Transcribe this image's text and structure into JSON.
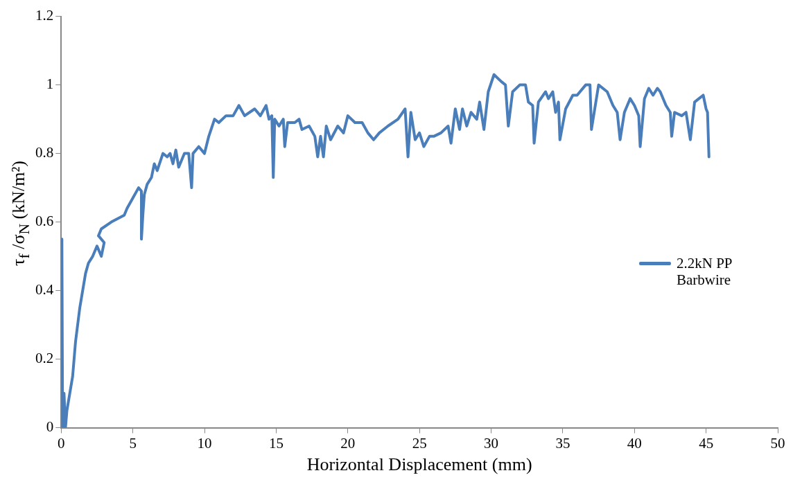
{
  "chart_data": {
    "type": "line",
    "xlabel": "Horizontal Displacement (mm)",
    "ylabel": "τ$_{f}$ /σ$_{N}$ (kN/m²)",
    "xlim": [
      0,
      50
    ],
    "xticks": [
      0,
      5,
      10,
      15,
      20,
      25,
      30,
      35,
      40,
      45,
      50
    ],
    "ylim": [
      0,
      1.2
    ],
    "yticks": [
      0,
      0.2,
      0.4,
      0.6,
      0.8,
      1,
      1.2
    ],
    "grid": false,
    "legend": "right",
    "marker": "none",
    "line_style": "solid",
    "series": [
      {
        "name": "2.2kN PP Barbwire",
        "color": "#4a7ebb",
        "x": [
          0.05,
          0.1,
          0.2,
          0.3,
          0.4,
          0.8,
          1.0,
          1.3,
          1.7,
          1.9,
          2.2,
          2.5,
          2.8,
          3.0,
          2.6,
          2.8,
          3.5,
          4.4,
          4.6,
          5.0,
          5.4,
          5.6,
          5.6,
          5.7,
          5.8,
          6.0,
          6.3,
          6.5,
          6.7,
          7.1,
          7.4,
          7.6,
          7.8,
          8.0,
          8.2,
          8.6,
          8.9,
          9.1,
          9.2,
          9.6,
          10,
          10.3,
          10.7,
          11.0,
          11.5,
          12.0,
          12.4,
          12.8,
          13.5,
          13.9,
          14.3,
          14.5,
          14.7,
          14.8,
          14.9,
          15.2,
          15.5,
          15.6,
          15.8,
          16.3,
          16.6,
          16.8,
          17.3,
          17.7,
          17.9,
          18.1,
          18.3,
          18.5,
          18.8,
          19.3,
          19.7,
          20.0,
          20.5,
          21.0,
          21.4,
          21.8,
          22.2,
          22.8,
          23.5,
          24.0,
          24.2,
          24.4,
          24.7,
          25.0,
          25.3,
          25.7,
          26.0,
          26.5,
          27.0,
          27.2,
          27.5,
          27.8,
          28.0,
          28.3,
          28.6,
          29.0,
          29.2,
          29.5,
          29.8,
          30.2,
          30.7,
          31.0,
          31.2,
          31.5,
          32.0,
          32.4,
          32.6,
          32.9,
          33.0,
          33.3,
          33.8,
          34.0,
          34.3,
          34.5,
          34.7,
          34.8,
          35.2,
          35.7,
          36.0,
          36.6,
          36.9,
          37.0,
          37.5,
          38.1,
          38.5,
          38.8,
          39.0,
          39.3,
          39.7,
          40.0,
          40.3,
          40.4,
          40.7,
          41.0,
          41.3,
          41.6,
          41.8,
          42.2,
          42.5,
          42.6,
          42.8,
          43.3,
          43.6,
          43.9,
          44.2,
          44.5,
          44.8,
          45.0,
          45.1,
          45.2
        ],
        "values": [
          0.55,
          0,
          0.1,
          0,
          0.05,
          0.15,
          0.25,
          0.35,
          0.45,
          0.48,
          0.5,
          0.53,
          0.5,
          0.54,
          0.56,
          0.58,
          0.6,
          0.62,
          0.64,
          0.67,
          0.7,
          0.69,
          0.55,
          0.62,
          0.68,
          0.71,
          0.73,
          0.77,
          0.75,
          0.8,
          0.79,
          0.8,
          0.77,
          0.81,
          0.76,
          0.8,
          0.8,
          0.7,
          0.8,
          0.82,
          0.8,
          0.85,
          0.9,
          0.89,
          0.91,
          0.91,
          0.94,
          0.91,
          0.93,
          0.91,
          0.94,
          0.9,
          0.91,
          0.73,
          0.9,
          0.88,
          0.9,
          0.82,
          0.89,
          0.89,
          0.9,
          0.87,
          0.88,
          0.85,
          0.79,
          0.85,
          0.79,
          0.88,
          0.84,
          0.88,
          0.86,
          0.91,
          0.89,
          0.89,
          0.86,
          0.84,
          0.86,
          0.88,
          0.9,
          0.93,
          0.79,
          0.92,
          0.84,
          0.86,
          0.82,
          0.85,
          0.85,
          0.86,
          0.88,
          0.83,
          0.93,
          0.87,
          0.93,
          0.88,
          0.92,
          0.9,
          0.95,
          0.87,
          0.98,
          1.03,
          1.01,
          1.0,
          0.88,
          0.98,
          1.0,
          1.0,
          0.95,
          0.94,
          0.83,
          0.95,
          0.98,
          0.96,
          0.98,
          0.92,
          0.95,
          0.84,
          0.93,
          0.97,
          0.97,
          1.0,
          1.0,
          0.87,
          1.0,
          0.98,
          0.94,
          0.92,
          0.84,
          0.92,
          0.96,
          0.94,
          0.91,
          0.82,
          0.96,
          0.99,
          0.97,
          0.99,
          0.98,
          0.94,
          0.92,
          0.85,
          0.92,
          0.91,
          0.92,
          0.84,
          0.95,
          0.96,
          0.97,
          0.93,
          0.92,
          0.79
        ]
      }
    ]
  }
}
